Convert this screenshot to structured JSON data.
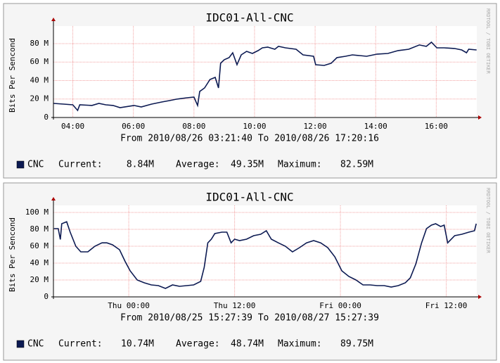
{
  "chart_data": [
    {
      "type": "line",
      "title": "IDC01-All-CNC",
      "subtitle": "From 2010/08/26 03:21:40 To 2010/08/26 17:20:16",
      "y_label": "Bits Per Sencond",
      "watermark": "RRDTOOL / TOBI OETIKER",
      "x": [
        3.37,
        3.7,
        4.0,
        4.16,
        4.23,
        4.63,
        4.86,
        5.09,
        5.33,
        5.56,
        6.02,
        6.26,
        6.6,
        6.95,
        7.19,
        7.42,
        7.77,
        8.0,
        8.12,
        8.19,
        8.35,
        8.53,
        8.7,
        8.81,
        8.88,
        9.0,
        9.16,
        9.28,
        9.42,
        9.56,
        9.74,
        9.93,
        10.12,
        10.26,
        10.44,
        10.67,
        10.79,
        11.02,
        11.37,
        11.6,
        11.95,
        12.02,
        12.3,
        12.53,
        12.72,
        13.0,
        13.23,
        13.47,
        13.7,
        14.05,
        14.4,
        14.74,
        15.09,
        15.44,
        15.67,
        15.84,
        16.02,
        16.26,
        16.6,
        16.84,
        17.0,
        17.07,
        17.33
      ],
      "series": [
        {
          "name": "CNC",
          "color": "#0c1a52",
          "values": [
            15.2,
            14.5,
            13.7,
            7.6,
            13.7,
            13,
            15.2,
            13.7,
            13,
            10.7,
            13,
            11.4,
            14.5,
            16.8,
            18.3,
            19.8,
            21.3,
            22.1,
            13,
            28.2,
            32,
            41.1,
            43.4,
            32,
            58.7,
            62.5,
            64.8,
            70.1,
            57.1,
            67.8,
            71.6,
            69.3,
            72.4,
            75.4,
            76.2,
            73.9,
            77,
            75.4,
            73.9,
            67.8,
            66.3,
            57.1,
            56.4,
            58.7,
            64.8,
            66.3,
            67.8,
            67,
            66.3,
            68.6,
            69.3,
            72.4,
            73.9,
            78.5,
            77,
            81.5,
            75.4,
            75.4,
            74.7,
            73.1,
            70.1,
            73.9,
            73.1
          ]
        }
      ],
      "xlim": [
        3.361,
        17.338
      ],
      "xticks": [
        {
          "value": 4,
          "label": "04:00"
        },
        {
          "value": 6,
          "label": "06:00"
        },
        {
          "value": 8,
          "label": "08:00"
        },
        {
          "value": 10,
          "label": "10:00"
        },
        {
          "value": 12,
          "label": "12:00"
        },
        {
          "value": 14,
          "label": "14:00"
        },
        {
          "value": 16,
          "label": "16:00"
        }
      ],
      "ylim": [
        0,
        91.4
      ],
      "yticks": [
        0,
        {
          "value": 20,
          "label": "20 M"
        },
        {
          "value": 40,
          "label": "40 M"
        },
        {
          "value": 60,
          "label": "60 M"
        },
        {
          "value": 80,
          "label": "80 M"
        }
      ],
      "grid": true,
      "stats": [
        {
          "label": "Current:",
          "value": "8.84M"
        },
        {
          "label": "Average:",
          "value": "49.35M"
        },
        {
          "label": "Maximum:",
          "value": "82.59M"
        }
      ]
    },
    {
      "type": "line",
      "title": "IDC01-All-CNC",
      "subtitle": "From 2010/08/25 15:27:39 To 2010/08/27 15:27:39",
      "y_label": "Bits Per Sencond",
      "watermark": "RRDTOOL / TOBI OETIKER",
      "x": [
        -8.48,
        -8.0,
        -7.76,
        -7.6,
        -7.04,
        -6.64,
        -6.0,
        -5.44,
        -4.64,
        -3.84,
        -3.04,
        -2.48,
        -1.84,
        -1.04,
        -0.4,
        0.16,
        0.96,
        1.76,
        2.56,
        3.36,
        4.16,
        4.96,
        5.76,
        6.56,
        7.36,
        8.16,
        8.56,
        8.96,
        9.36,
        9.76,
        10.56,
        11.12,
        11.6,
        12.0,
        12.56,
        13.36,
        14.16,
        14.96,
        15.6,
        16.16,
        16.96,
        17.76,
        18.56,
        19.36,
        20.16,
        20.96,
        21.76,
        22.56,
        23.36,
        24.16,
        24.96,
        25.76,
        26.56,
        27.36,
        28.16,
        28.96,
        29.76,
        30.56,
        31.36,
        31.92,
        32.56,
        33.2,
        33.76,
        34.32,
        34.8,
        35.36,
        35.76,
        36.16,
        36.96,
        37.76,
        38.56,
        39.2,
        39.4
      ],
      "series": [
        {
          "name": "CNC",
          "color": "#0c1a52",
          "values": [
            80.8,
            80.8,
            68,
            86.7,
            89,
            76.7,
            60,
            53.3,
            53.3,
            60,
            64,
            64,
            61.7,
            55.8,
            41.7,
            30.8,
            20,
            16.7,
            14.2,
            13.3,
            10,
            14.2,
            12.5,
            13.3,
            14.2,
            18.3,
            35,
            64,
            68.3,
            75,
            76.7,
            76.7,
            64,
            68.3,
            66.7,
            68.3,
            72.5,
            74.2,
            78.3,
            68.3,
            64,
            60,
            53.3,
            58.3,
            64,
            66.7,
            64,
            58.3,
            47.5,
            30.8,
            24.2,
            20,
            14.2,
            14.2,
            13.3,
            13.3,
            11.7,
            13.3,
            16.7,
            22.5,
            39.2,
            64,
            80.8,
            85,
            86.7,
            83.3,
            85,
            64,
            72.5,
            74.2,
            76.7,
            78.3,
            86.7
          ]
        }
      ],
      "xlim": [
        -8.539,
        39.461
      ],
      "xticks": [
        {
          "value": 0,
          "label": "Thu 00:00"
        },
        {
          "value": 12,
          "label": "Thu 12:00"
        },
        {
          "value": 24,
          "label": "Fri 00:00"
        },
        {
          "value": 36,
          "label": "Fri 12:00"
        }
      ],
      "ylim": [
        0,
        100
      ],
      "yticks": [
        0,
        {
          "value": 20,
          "label": "20 M"
        },
        {
          "value": 40,
          "label": "40 M"
        },
        {
          "value": 60,
          "label": "60 M"
        },
        {
          "value": 80,
          "label": "80 M"
        },
        {
          "value": 100,
          "label": "100 M"
        }
      ],
      "grid": true,
      "stats": [
        {
          "label": "Current:",
          "value": "10.74M"
        },
        {
          "label": "Average:",
          "value": "48.74M"
        },
        {
          "label": "Maximum:",
          "value": "89.75M"
        }
      ]
    }
  ]
}
